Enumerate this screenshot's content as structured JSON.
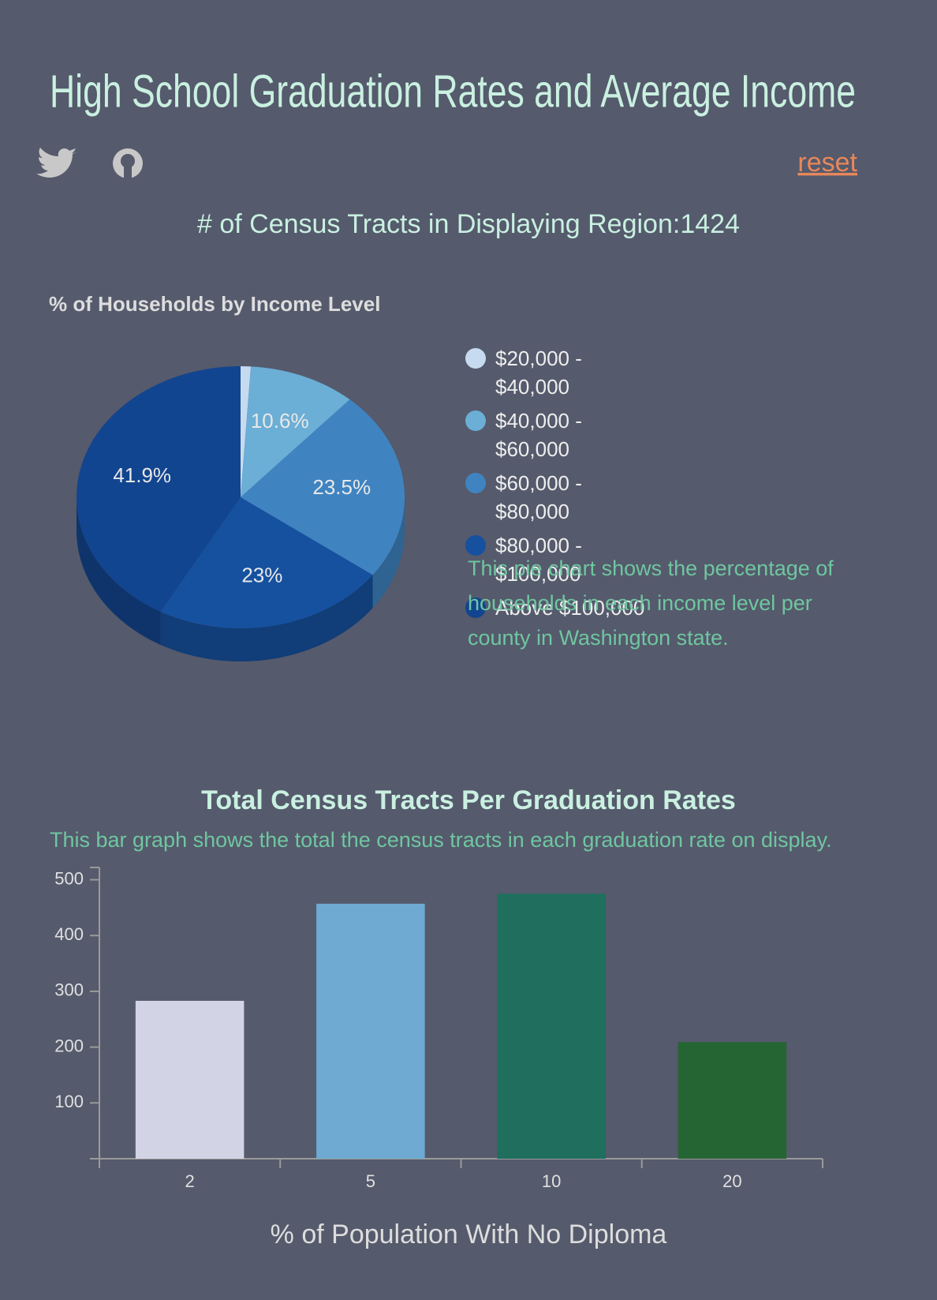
{
  "header": {
    "title": "High School Graduation Rates and Average Income",
    "reset": "reset",
    "tract_count_label": "# of Census Tracts in Displaying Region:",
    "tract_count": 1424
  },
  "chart_data": [
    {
      "type": "pie",
      "title": "% of Households by Income Level",
      "categories": [
        "$20,000 - $40,000",
        "$40,000 - $60,000",
        "$60,000 - $80,000",
        "$80,000 - $100,000",
        "Above $100,000"
      ],
      "values": [
        1.0,
        10.6,
        23.5,
        23,
        41.9
      ],
      "value_labels": [
        null,
        "10.6%",
        "23.5%",
        "23%",
        "41.9%"
      ],
      "colors": [
        "#c6dbef",
        "#6baed6",
        "#3f84c1",
        "#1651a0",
        "#12458f"
      ],
      "description": "This pie chart shows the percentage of households in each income level per county in Washington state."
    },
    {
      "type": "bar",
      "title": "Total Census Tracts Per Graduation Rates",
      "description": "This bar graph shows the total the census tracts in each graduation rate on display.",
      "categories": [
        "2",
        "5",
        "10",
        "20"
      ],
      "values": [
        283,
        457,
        475,
        209
      ],
      "colors": [
        "#d3d3e6",
        "#6eaad2",
        "#1f6e5e",
        "#256533"
      ],
      "xlabel": "% of Population With No Diploma",
      "ylim": [
        0,
        522
      ],
      "yticks": [
        100,
        200,
        300,
        400,
        500
      ]
    }
  ]
}
